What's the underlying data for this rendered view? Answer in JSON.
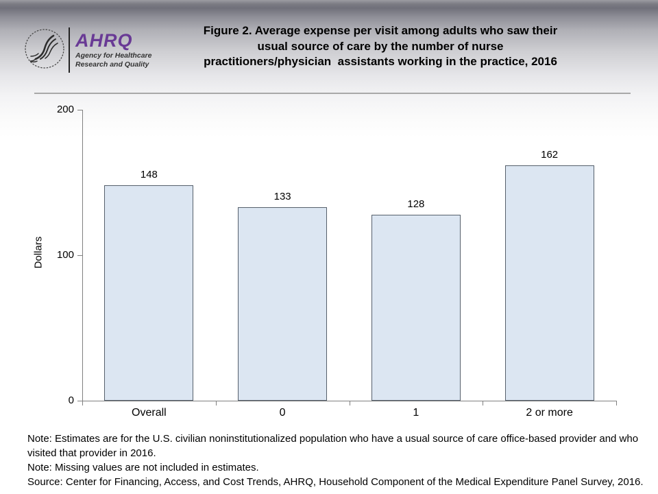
{
  "header": {
    "logo": {
      "org_abbr": "AHRQ",
      "tagline_line1": "Agency for Healthcare",
      "tagline_line2": "Research and Quality",
      "brand_color": "#693a95"
    },
    "title_lines": [
      "Figure 2. Average expense per visit among adults who saw their",
      "usual source of care by the number of nurse",
      "practitioners/physician  assistants working in the practice, 2016"
    ]
  },
  "chart_data": {
    "type": "bar",
    "title": "Figure 2. Average expense per visit among adults who saw their usual source of care by the number of nurse practitioners/physician assistants working in the practice, 2016",
    "categories": [
      "Overall",
      "0",
      "1",
      "2 or more"
    ],
    "values": [
      148,
      133,
      128,
      162
    ],
    "xlabel": "",
    "ylabel": "Dollars",
    "ylim": [
      0,
      200
    ],
    "yticks": [
      0,
      100,
      200
    ],
    "grid": false,
    "legend_position": "none",
    "data_labels": true,
    "bar_fill": "#dce6f2",
    "bar_border": "#555f6b"
  },
  "notes": {
    "items": [
      "Note: Estimates are for the U.S. civilian noninstitutionalized population who have a usual source of care office-based provider and who visited that provider in 2016.",
      "Note: Missing values are not included in estimates.",
      "Source: Center for Financing, Access, and Cost Trends, AHRQ, Household Component of the Medical Expenditure Panel Survey, 2016."
    ]
  }
}
